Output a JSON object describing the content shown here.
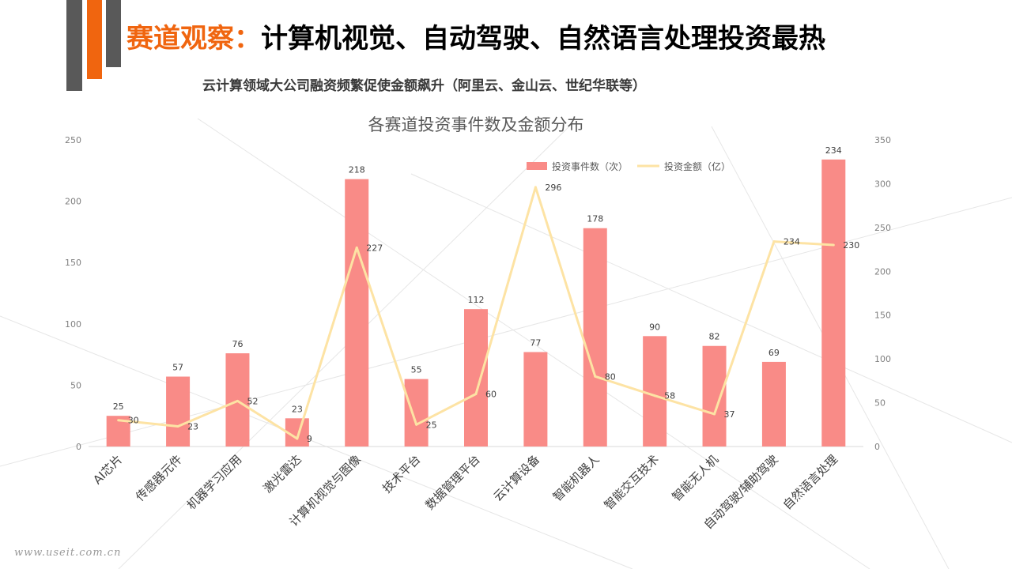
{
  "slide": {
    "title_highlight": "赛道观察：",
    "title_rest": "计算机视觉、自动驾驶、自然语言处理投资最热",
    "subtitle": "云计算领域大公司融资频繁促使金额飙升（阿里云、金山云、世纪华联等）",
    "watermark": "www.useit.com.cn",
    "accent_color": "#f0650f",
    "dark_color": "#595959"
  },
  "chart_data": {
    "type": "bar",
    "title": "各赛道投资事件数及金额分布",
    "categories": [
      "AI芯片",
      "传感器元件",
      "机器学习应用",
      "激光雷达",
      "计算机视觉与图像",
      "技术平台",
      "数据管理平台",
      "云计算设备",
      "智能机器人",
      "智能交互技术",
      "智能无人机",
      "自动驾驶/辅助驾驶",
      "自然语言处理"
    ],
    "series": [
      {
        "name": "投资事件数（次）",
        "type": "bar",
        "axis": "left",
        "color": "#f98b87",
        "values": [
          25,
          57,
          76,
          23,
          218,
          55,
          112,
          77,
          178,
          90,
          82,
          69,
          234
        ]
      },
      {
        "name": "投资金额（亿）",
        "type": "line",
        "axis": "right",
        "color": "#fde3a4",
        "values": [
          30,
          23,
          52,
          9,
          227,
          25,
          60,
          296,
          80,
          58,
          37,
          234,
          230
        ]
      }
    ],
    "y_left": {
      "ylim": [
        0,
        250
      ],
      "ticks": [
        "0",
        "50",
        "100",
        "150",
        "200",
        "250"
      ]
    },
    "y_right": {
      "ylim": [
        0,
        350
      ],
      "ticks": [
        "0",
        "50",
        "100",
        "150",
        "200",
        "250",
        "300",
        "350"
      ]
    },
    "legend_position": "top-right",
    "grid": false
  }
}
